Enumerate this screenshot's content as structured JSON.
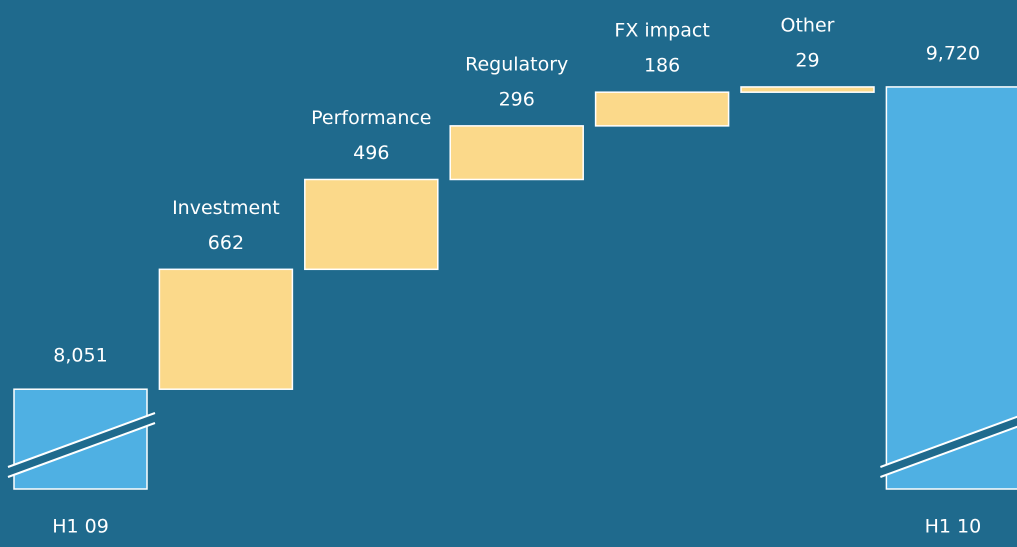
{
  "chart_data": {
    "type": "waterfall",
    "categories": [
      "H1 09",
      "Investment",
      "Performance",
      "Regulatory",
      "FX impact",
      "Other",
      "H1 10"
    ],
    "values": [
      8051,
      662,
      496,
      296,
      186,
      29,
      9720
    ],
    "value_labels": [
      "8,051",
      "662",
      "496",
      "296",
      "186",
      "29",
      "9,720"
    ],
    "measure": [
      "absolute",
      "relative",
      "relative",
      "relative",
      "relative",
      "relative",
      "absolute"
    ],
    "total_color": "#4fb0e3",
    "delta_color": "#fbd98a",
    "ylim": [
      7500,
      10200
    ],
    "axis_break": true
  }
}
